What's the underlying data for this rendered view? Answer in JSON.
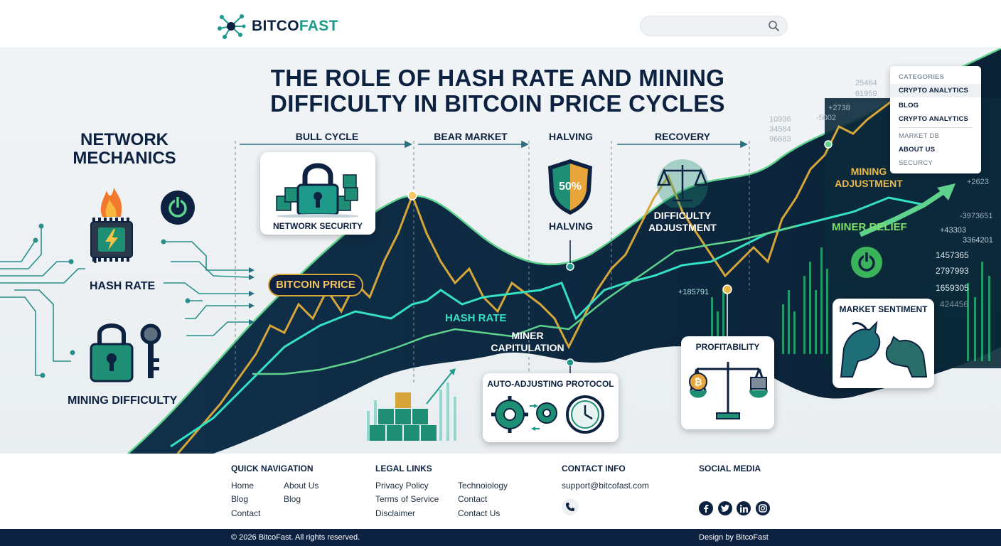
{
  "brand": {
    "name_part1": "BITCO",
    "name_part2": "FAST",
    "accent": "#1e9a8a",
    "navy": "#0d2240",
    "gold": "#e7b84a"
  },
  "search": {
    "placeholder": "",
    "icon": "search-icon"
  },
  "hero": {
    "title_line1": "THE ROLE OF HASH RATE AND MINING",
    "title_line2": "DIFFICULTY IN BITCOIN PRICE CYCLES",
    "left_title_line1": "NETWORK",
    "left_title_line2": "MECHANICS",
    "hash_rate_label": "HASH RATE",
    "mining_difficulty_label": "MINING DIFFICULTY",
    "phases": [
      "BULL CYCLE",
      "BEAR MARKET",
      "HALVING",
      "RECOVERY"
    ],
    "network_security": "NETWORK SECURITY",
    "bitcoin_price": "BITCOIN PRICE",
    "halving_badge": "50%",
    "halving_label": "HALVING",
    "hash_rate_line_label": "HASH RATE",
    "miner_capitulation_line1": "MINER",
    "miner_capitulation_line2": "CAPITULATION",
    "difficulty_adjustment_line1": "DIFFICULTY",
    "difficulty_adjustment_line2": "ADJUSTMENT",
    "mining_adjustment_line1": "MINING",
    "mining_adjustment_line2": "ADJUSTMENT",
    "miner_relief": "MINER RELIEF",
    "auto_adjusting": "AUTO-ADJUSTING PROTOCOL",
    "profitability": "PROFITABILITY",
    "market_sentiment": "MARKET SENTIMENT",
    "ticker_numbers": [
      "25464",
      "61959",
      "+2738",
      "-5002",
      "10936",
      "34584",
      "96683",
      "+185791",
      "1457365",
      "2797993",
      "1659305",
      "424456",
      "+43303",
      "3364201",
      "-3973651",
      "+2623"
    ]
  },
  "menu": {
    "header": "CATEGORIES",
    "items": [
      "CRYPTO ANALYTICS",
      "BLOG",
      "CRYPTO ANALYTICS",
      "MARKET DB",
      "ABOUT US",
      "SECURCY"
    ]
  },
  "footer": {
    "quick_nav": {
      "heading": "QUICK NAVIGATION",
      "col1": [
        "Home",
        "Blog",
        "Contact"
      ],
      "col2": [
        "About Us",
        "Blog"
      ]
    },
    "legal": {
      "heading": "LEGAL LINKS",
      "col1": [
        "Privacy Policy",
        "Terms of Service",
        "Disclaimer"
      ],
      "col2": [
        "Technoiology",
        "Contact",
        "Contact Us"
      ]
    },
    "contact": {
      "heading": "CONTACT INFO",
      "email": "support@bitcofast.com"
    },
    "social": {
      "heading": "SOCIAL MEDIA",
      "icons": [
        "facebook-icon",
        "twitter-icon",
        "linkedin-icon",
        "instagram-icon"
      ]
    },
    "copyright": "© 2026 BitcoFast. All rights reserved.",
    "design_by": "Design by BitcoFast"
  }
}
